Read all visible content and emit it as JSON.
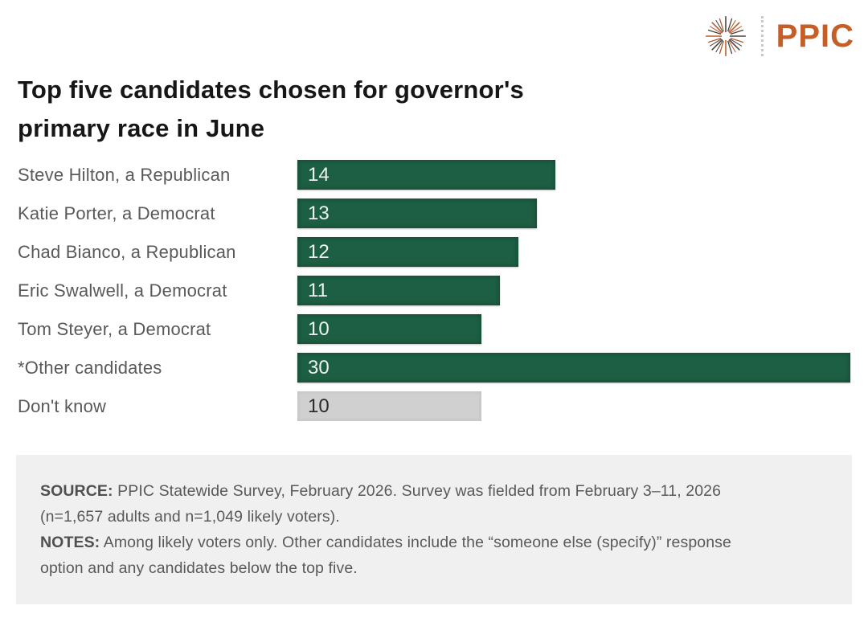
{
  "header": {
    "logo_icon": "starburst-icon",
    "logo_text": "PPIC",
    "logo_color": "#c65e27"
  },
  "title": "Top five candidates chosen for governor's\nprimary race in June",
  "chart_data": {
    "type": "bar",
    "orientation": "horizontal",
    "title": "Top five candidates chosen for governor's primary race in June",
    "categories": [
      "Steve Hilton, a Republican",
      "Katie Porter, a Democrat",
      "Chad Bianco, a Republican",
      "Eric Swalwell, a Democrat",
      "Tom Steyer, a Democrat",
      "*Other candidates",
      "Don't know"
    ],
    "values": [
      14,
      13,
      12,
      11,
      10,
      30,
      10
    ],
    "value_labels_shown": true,
    "xlim": [
      0,
      30
    ],
    "grid": false,
    "legend": "none",
    "bar_styles": [
      "green",
      "green",
      "green",
      "green",
      "green",
      "green",
      "gray"
    ],
    "colors": {
      "bar_green": "#1d5f44",
      "bar_gray": "#d0d0d0",
      "value_label_on_green": "#eef2ee",
      "value_label_on_gray": "#2b2b2b",
      "category_label": "#58595b"
    }
  },
  "footer": {
    "source_label": "SOURCE:",
    "source_text": " PPIC Statewide Survey, February 2026. Survey was fielded from February 3–11, 2026\n(n=1,657 adults and n=1,049 likely voters).",
    "notes_label": "NOTES:",
    "notes_text": " Among likely voters only. Other candidates include the “someone else (specify)” response\noption and any candidates below the top five."
  }
}
